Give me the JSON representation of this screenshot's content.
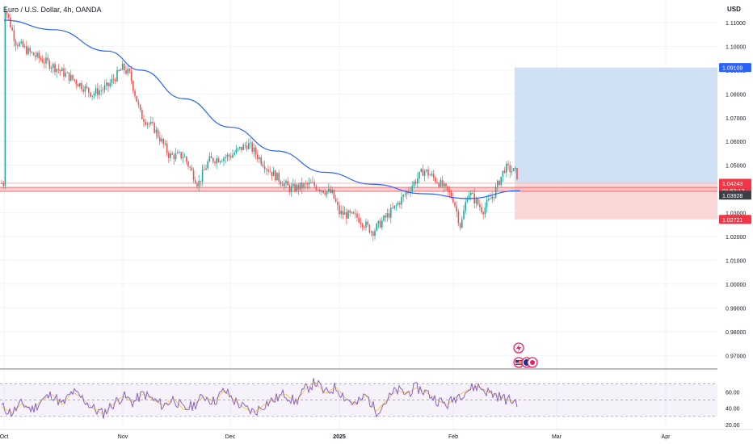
{
  "header": {
    "symbol": "Euro / U.S. Dollar, 4h, OANDA",
    "currency": "USD"
  },
  "colors": {
    "up": "#26a69a",
    "down": "#ef5350",
    "ma": "#2962ff",
    "rsi": "#7e57c2",
    "rsi_ma": "#f7c548",
    "profit_zone": "#c8dcf4",
    "loss_zone": "#fbd3d4",
    "grid": "#f0f3fa",
    "text": "#131722"
  },
  "icons": [
    "lightning-icon",
    "us-flag-icon",
    "eu-flag-icon"
  ],
  "chart_data": {
    "type": "candlestick",
    "title": "Euro / U.S. Dollar, 4h, OANDA",
    "y_axis_ticks": [
      "1.11000",
      "1.10000",
      "1.09000",
      "1.08000",
      "1.07000",
      "1.06000",
      "1.05000",
      "1.04000",
      "1.03000",
      "1.02000",
      "1.01000",
      "1.00000",
      "0.99000",
      "0.98000",
      "0.97000"
    ],
    "ylim": [
      0.965,
      1.1195
    ],
    "x_axis_ticks": [
      "Oct",
      "Nov",
      "Dec",
      "2025",
      "Feb",
      "Mar",
      "Apr"
    ],
    "price_labels": {
      "target": "1.09109",
      "current": "1.04243",
      "countdown": "01:52:12",
      "ma_value": "1.03928",
      "stop": "1.02721"
    },
    "price_path": [
      {
        "t": "Oct",
        "v": 1.118
      },
      {
        "t": "Oct 4",
        "v": 1.102
      },
      {
        "t": "Oct 8",
        "v": 1.097
      },
      {
        "t": "Oct 14",
        "v": 1.0915
      },
      {
        "t": "Oct 20",
        "v": 1.085
      },
      {
        "t": "Oct 24",
        "v": 1.08
      },
      {
        "t": "Oct 28",
        "v": 1.083
      },
      {
        "t": "Nov 1",
        "v": 1.091
      },
      {
        "t": "Nov 3",
        "v": 1.088
      },
      {
        "t": "Nov 6",
        "v": 1.071
      },
      {
        "t": "Nov 10",
        "v": 1.065
      },
      {
        "t": "Nov 14",
        "v": 1.054
      },
      {
        "t": "Nov 18",
        "v": 1.054
      },
      {
        "t": "Nov 22",
        "v": 1.042
      },
      {
        "t": "Nov 25",
        "v": 1.052
      },
      {
        "t": "Dec",
        "v": 1.054
      },
      {
        "t": "Dec 6",
        "v": 1.059
      },
      {
        "t": "Dec 12",
        "v": 1.048
      },
      {
        "t": "Dec 18",
        "v": 1.04
      },
      {
        "t": "Dec 24",
        "v": 1.042
      },
      {
        "t": "Dec 30",
        "v": 1.038
      },
      {
        "t": "2025",
        "v": 1.03
      },
      {
        "t": "Jan 6",
        "v": 1.028
      },
      {
        "t": "Jan 10",
        "v": 1.022
      },
      {
        "t": "Jan 16",
        "v": 1.032
      },
      {
        "t": "Jan 20",
        "v": 1.04
      },
      {
        "t": "Jan 24",
        "v": 1.048
      },
      {
        "t": "Jan 28",
        "v": 1.043
      },
      {
        "t": "Feb",
        "v": 1.036
      },
      {
        "t": "Feb 3",
        "v": 1.024
      },
      {
        "t": "Feb 5",
        "v": 1.039
      },
      {
        "t": "Feb 9",
        "v": 1.031
      },
      {
        "t": "Feb 12",
        "v": 1.038
      },
      {
        "t": "Feb 15",
        "v": 1.049
      },
      {
        "t": "Feb 18",
        "v": 1.047
      },
      {
        "t": "Feb 19",
        "v": 1.0424
      }
    ],
    "moving_average": [
      {
        "t": "Oct",
        "v": 1.111
      },
      {
        "t": "Oct 14",
        "v": 1.107
      },
      {
        "t": "Oct 28",
        "v": 1.098
      },
      {
        "t": "Nov 6",
        "v": 1.09
      },
      {
        "t": "Nov 18",
        "v": 1.078
      },
      {
        "t": "Dec",
        "v": 1.066
      },
      {
        "t": "Dec 14",
        "v": 1.056
      },
      {
        "t": "Dec 28",
        "v": 1.047
      },
      {
        "t": "Jan 10",
        "v": 1.042
      },
      {
        "t": "Jan 24",
        "v": 1.038
      },
      {
        "t": "Feb 5",
        "v": 1.036
      },
      {
        "t": "Feb 19",
        "v": 1.0393
      }
    ],
    "position": {
      "type": "long",
      "entry": 1.0424,
      "target": 1.09109,
      "stop": 1.02721
    },
    "support_band": [
      1.0392,
      1.0405
    ],
    "rsi": {
      "axis_ticks": [
        "60.00",
        "40.00",
        "20.00"
      ],
      "ylim": [
        18,
        85
      ],
      "upper_band": 70,
      "lower_band": 30,
      "series_path": [
        42,
        34,
        46,
        38,
        50,
        57,
        44,
        60,
        52,
        40,
        33,
        45,
        55,
        47,
        58,
        50,
        43,
        52,
        38,
        44,
        55,
        48,
        62,
        49,
        40,
        35,
        45,
        51,
        58,
        47,
        63,
        72,
        58,
        66,
        52,
        44,
        56,
        36,
        49,
        62,
        58,
        65,
        59,
        50,
        44,
        55,
        62,
        67,
        60,
        55,
        50,
        48
      ]
    },
    "grid": true
  }
}
